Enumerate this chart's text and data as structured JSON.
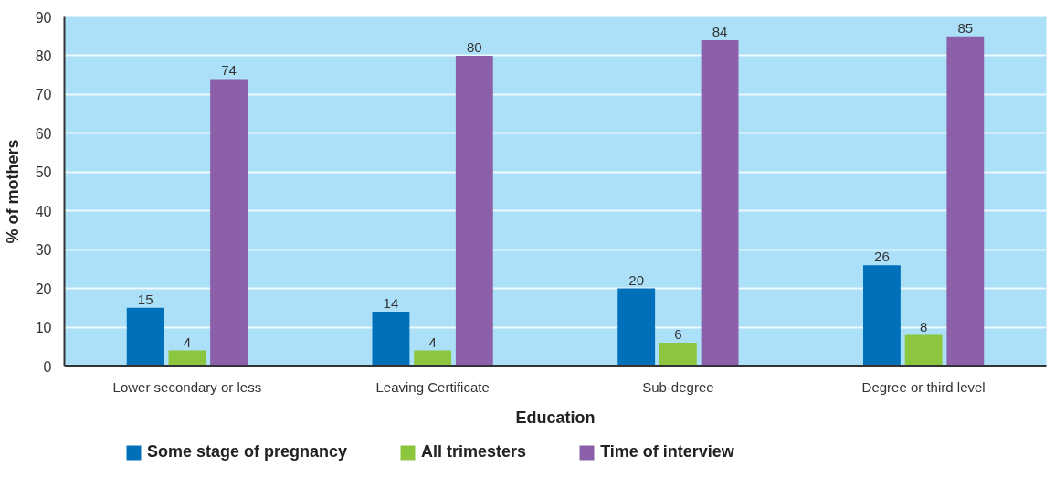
{
  "chart_data": {
    "type": "bar",
    "xlabel": "Education",
    "ylabel": "% of mothers",
    "categories": [
      "Lower secondary or less",
      "Leaving Certificate",
      "Sub-degree",
      "Degree or third level"
    ],
    "series": [
      {
        "name": "Some stage of pregnancy",
        "color": "#0070bb",
        "values": [
          15,
          14,
          20,
          26
        ]
      },
      {
        "name": "All trimesters",
        "color": "#8cc63f",
        "values": [
          4,
          4,
          6,
          8
        ]
      },
      {
        "name": "Time of interview",
        "color": "#8b60a8",
        "values": [
          74,
          80,
          84,
          85
        ]
      }
    ],
    "ylim": [
      0,
      90
    ],
    "yticks": [
      0,
      10,
      20,
      30,
      40,
      50,
      60,
      70,
      80,
      90
    ],
    "grid": "y",
    "legend": "bottom",
    "data_labels": true
  }
}
